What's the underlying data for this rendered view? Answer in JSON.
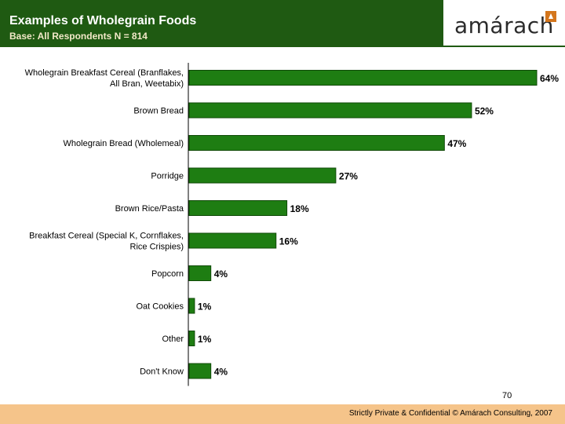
{
  "header": {
    "title": "Examples of Wholegrain Foods",
    "subtitle": "Base: All Respondents N = 814",
    "logo_text": "amárach"
  },
  "colors": {
    "header_band": "#1f5a12",
    "bar": "#1e7d12",
    "bar_border": "#104a08",
    "footer_band": "#f5c48a"
  },
  "chart_data": {
    "type": "bar",
    "orientation": "horizontal",
    "title": "Examples of Wholegrain Foods",
    "xlabel": "",
    "ylabel": "",
    "xlim": [
      0,
      64
    ],
    "categories": [
      [
        "Wholegrain Breakfast Cereal (Branflakes,",
        "All Bran, Weetabix)"
      ],
      [
        "Brown Bread"
      ],
      [
        "Wholegrain Bread (Wholemeal)"
      ],
      [
        "Porridge"
      ],
      [
        "Brown Rice/Pasta"
      ],
      [
        "Breakfast Cereal (Special K, Cornflakes,",
        "Rice Crispies)"
      ],
      [
        "Popcorn"
      ],
      [
        "Oat Cookies"
      ],
      [
        "Other"
      ],
      [
        "Don't Know"
      ]
    ],
    "values": [
      64,
      52,
      47,
      27,
      18,
      16,
      4,
      1,
      1,
      4
    ],
    "value_labels": [
      "64%",
      "52%",
      "47%",
      "27%",
      "18%",
      "16%",
      "4%",
      "1%",
      "1%",
      "4%"
    ]
  },
  "page_number": "70",
  "footer": {
    "text": "Strictly Private & Confidential © Amárach Consulting, 2007"
  }
}
